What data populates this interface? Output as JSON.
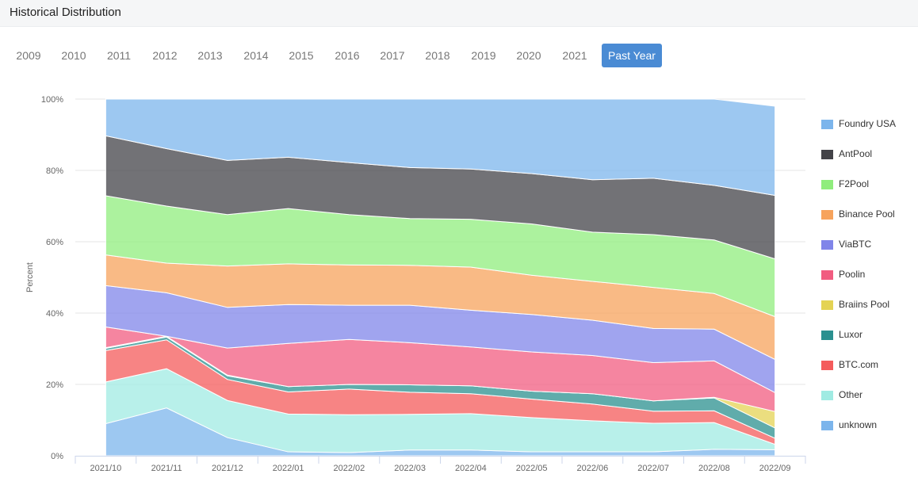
{
  "header": {
    "title": "Historical Distribution"
  },
  "tabs": [
    {
      "label": "2009",
      "active": false
    },
    {
      "label": "2010",
      "active": false
    },
    {
      "label": "2011",
      "active": false
    },
    {
      "label": "2012",
      "active": false
    },
    {
      "label": "2013",
      "active": false
    },
    {
      "label": "2014",
      "active": false
    },
    {
      "label": "2015",
      "active": false
    },
    {
      "label": "2016",
      "active": false
    },
    {
      "label": "2017",
      "active": false
    },
    {
      "label": "2018",
      "active": false
    },
    {
      "label": "2019",
      "active": false
    },
    {
      "label": "2020",
      "active": false
    },
    {
      "label": "2021",
      "active": false
    },
    {
      "label": "Past Year",
      "active": true
    }
  ],
  "chart_data": {
    "type": "area",
    "stacked": "percent",
    "ylabel": "Percent",
    "ylim": [
      0,
      100
    ],
    "yticks": [
      "0%",
      "20%",
      "40%",
      "60%",
      "80%",
      "100%"
    ],
    "yticks_values": [
      0,
      20,
      40,
      60,
      80,
      100
    ],
    "grid": true,
    "legend_position": "right",
    "categories": [
      "2021/10",
      "2021/11",
      "2021/12",
      "2022/01",
      "2022/02",
      "2022/03",
      "2022/04",
      "2022/05",
      "2022/06",
      "2022/07",
      "2022/08",
      "2022/09"
    ],
    "series": [
      {
        "name": "unknown",
        "color": "#7cb5ec",
        "values": [
          9,
          13.4,
          5.1,
          1.1,
          0.9,
          1.6,
          1.6,
          1.1,
          1.1,
          1.1,
          1.8,
          1.7
        ]
      },
      {
        "name": "Other",
        "color": "#a0ebe3",
        "values": [
          11.7,
          11,
          10.4,
          10.6,
          10.6,
          10,
          10.2,
          9.6,
          8.7,
          8,
          7.5,
          1.5
        ]
      },
      {
        "name": "BTC.com",
        "color": "#f45b5b",
        "values": [
          8.8,
          8.1,
          5.9,
          6.2,
          7.2,
          6.2,
          5.6,
          5.2,
          4.7,
          3.4,
          3.3,
          1.7
        ]
      },
      {
        "name": "Luxor",
        "color": "#2b908f",
        "values": [
          0.6,
          0.8,
          1,
          1.5,
          1.3,
          2.1,
          2.2,
          2.2,
          2.9,
          2.9,
          3.6,
          2.9
        ]
      },
      {
        "name": "Braiins Pool",
        "color": "#e4d354",
        "values": [
          0.2,
          0.2,
          0.2,
          0,
          0,
          0,
          0,
          0,
          0,
          0,
          0.2,
          4.6
        ]
      },
      {
        "name": "Poolin",
        "color": "#f15c80",
        "values": [
          5.8,
          0,
          7.6,
          12.1,
          12.6,
          11.8,
          10.9,
          11,
          10.7,
          10.7,
          10.2,
          5.3
        ]
      },
      {
        "name": "ViaBTC",
        "color": "#8085e9",
        "values": [
          11.6,
          12.2,
          11.4,
          10.9,
          9.6,
          10.5,
          10.3,
          10.5,
          9.9,
          9.6,
          8.9,
          9.3
        ]
      },
      {
        "name": "Binance Pool",
        "color": "#f7a35c",
        "values": [
          8.6,
          8.3,
          11.6,
          11.4,
          11.3,
          11.2,
          12.1,
          11,
          10.9,
          11.5,
          10,
          12
        ]
      },
      {
        "name": "F2Pool",
        "color": "#90ed7d",
        "values": [
          16.6,
          16,
          14.4,
          15.5,
          14.1,
          13.1,
          13.4,
          14.4,
          13.8,
          14.8,
          15,
          16.2
        ]
      },
      {
        "name": "AntPool",
        "color": "#434348",
        "values": [
          16.8,
          16.1,
          15.2,
          14.4,
          14.6,
          14.3,
          14.1,
          14.1,
          14.7,
          15.8,
          15.3,
          17.8
        ]
      },
      {
        "name": "Foundry USA",
        "color": "#7cb5ec",
        "values": [
          10.3,
          13.9,
          17.2,
          16.3,
          17.8,
          19.2,
          19.6,
          20.9,
          22.6,
          22.2,
          24.2,
          25
        ]
      }
    ],
    "legend_order": [
      "Foundry USA",
      "AntPool",
      "F2Pool",
      "Binance Pool",
      "ViaBTC",
      "Poolin",
      "Braiins Pool",
      "Luxor",
      "BTC.com",
      "Other",
      "unknown"
    ]
  }
}
